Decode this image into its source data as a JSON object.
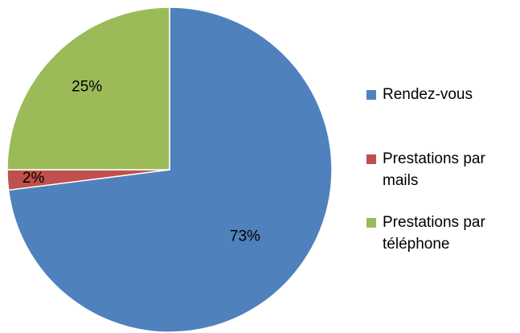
{
  "chart_data": {
    "type": "pie",
    "title": "",
    "categories": [
      "Rendez-vous",
      "Prestations par mails",
      "Prestations par téléphone"
    ],
    "values": [
      73,
      2,
      25
    ],
    "data_labels": [
      "73%",
      "2%",
      "25%"
    ],
    "colors": [
      "#4F81BD",
      "#C0504D",
      "#9BBB59"
    ],
    "legend": {
      "placement": "right",
      "entries": [
        {
          "label": "Rendez-vous"
        },
        {
          "label": "Prestations par mails"
        },
        {
          "label": "Prestations par téléphone"
        }
      ]
    }
  }
}
